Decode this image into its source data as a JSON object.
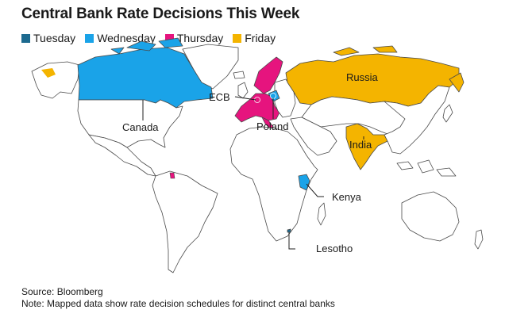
{
  "title": "Central Bank Rate Decisions This Week",
  "legend": [
    {
      "label": "Tuesday",
      "color": "#1d6a8f"
    },
    {
      "label": "Wednesday",
      "color": "#1aa3e8"
    },
    {
      "label": "Thursday",
      "color": "#e6147e"
    },
    {
      "label": "Friday",
      "color": "#f4b400"
    }
  ],
  "colors": {
    "land": "#ffffff",
    "border": "#4a4a4a",
    "leader": "#222222"
  },
  "labels": {
    "russia": "Russia",
    "ecb": "ECB",
    "canada": "Canada",
    "poland": "Poland",
    "india": "India",
    "kenya": "Kenya",
    "lesotho": "Lesotho"
  },
  "footer": {
    "source": "Source: Bloomberg",
    "note": "Note: Mapped data show rate decision schedules for distinct central banks"
  }
}
